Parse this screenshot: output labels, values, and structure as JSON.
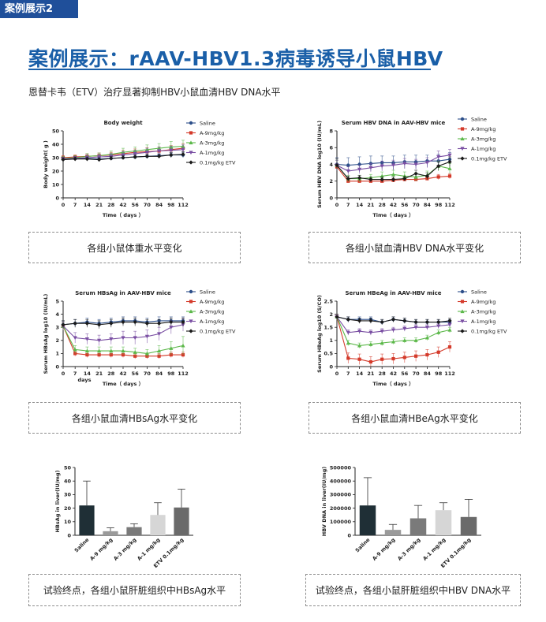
{
  "header": {
    "tag": "案例展示2",
    "title": "案例展示：rAAV-HBV1.3病毒诱导小鼠HBV",
    "subtitle": "恩替卡韦（ETV）治疗显著抑制HBV小鼠血清HBV DNA水平"
  },
  "captions": [
    "各组小鼠体重水平变化",
    "各组小鼠血清HBV DNA水平变化",
    "各组小鼠血清HBsAg水平变化",
    "各组小鼠血清HBeAg水平变化",
    "试验终点，各组小鼠肝脏组织中HBsAg水平",
    "试验终点，各组小鼠肝脏组织中HBV DNA水平"
  ],
  "chart_data": [
    {
      "id": "bw",
      "type": "line",
      "title": "Body weight",
      "xlabel": "Time（ days ）",
      "ylabel": "Body weight( g )",
      "x": [
        0,
        7,
        14,
        21,
        28,
        42,
        56,
        70,
        84,
        98,
        112
      ],
      "xticks": [
        "0",
        "7",
        "14",
        "21",
        "28",
        "42",
        "56",
        "70",
        "84",
        "98",
        "112"
      ],
      "yticks": [
        0,
        10,
        20,
        30,
        40,
        50
      ],
      "ylim": [
        0,
        50
      ],
      "legend": "right",
      "series": [
        {
          "name": "Saline",
          "color": "#2d4f8a",
          "marker": "circle",
          "values": [
            29,
            29.5,
            29.5,
            29,
            29.5,
            30,
            30.5,
            31,
            31.5,
            32,
            32
          ],
          "err": [
            1.5,
            1.5,
            1.5,
            1.5,
            1.5,
            1.5,
            1.5,
            1.5,
            1.5,
            1.5,
            2
          ]
        },
        {
          "name": "A-9mg/kg",
          "color": "#d43a2a",
          "marker": "square",
          "values": [
            30,
            30.5,
            31,
            31.5,
            32,
            33,
            34,
            34.5,
            35,
            36,
            37
          ],
          "err": [
            1.5,
            1.5,
            2,
            2,
            2,
            2.5,
            2.5,
            3,
            3,
            3,
            3.5
          ]
        },
        {
          "name": "A-3mg/kg",
          "color": "#5cb84a",
          "marker": "triangle",
          "values": [
            29.5,
            30,
            31,
            31.5,
            32.5,
            34,
            35,
            36,
            37,
            38,
            38.5
          ],
          "err": [
            1.5,
            1.5,
            2,
            2,
            2.5,
            3,
            3,
            3.5,
            3.5,
            4,
            4.5
          ]
        },
        {
          "name": "A-1mg/kg",
          "color": "#7a4fa3",
          "marker": "tri-down",
          "values": [
            29,
            29.5,
            30,
            30.5,
            31,
            32,
            33,
            34,
            35,
            35.5,
            36
          ],
          "err": [
            1.5,
            1.5,
            2,
            2,
            2,
            2.5,
            2.5,
            3,
            3,
            3,
            3.5
          ]
        },
        {
          "name": "0.1mg/kg ETV",
          "color": "#1a1a1a",
          "marker": "diamond",
          "values": [
            28.5,
            29,
            29,
            28.5,
            29.5,
            30,
            30.5,
            31,
            31,
            32,
            32.5
          ],
          "err": [
            1.5,
            1.5,
            1.5,
            1.5,
            1.5,
            1.5,
            1.5,
            1.5,
            1.5,
            2,
            2
          ]
        }
      ]
    },
    {
      "id": "dna",
      "type": "line",
      "title": "Serum HBV DNA in AAV-HBV mice",
      "xlabel": "Time（ days ）",
      "ylabel": "Serum HBV DNA log10 (IU/mL)",
      "x": [
        0,
        7,
        14,
        21,
        28,
        42,
        56,
        70,
        84,
        98,
        112
      ],
      "xticks": [
        "0",
        "7",
        "14",
        "21",
        "28",
        "42",
        "56",
        "70",
        "84",
        "98",
        "112"
      ],
      "yticks": [
        0,
        2,
        4,
        6,
        8
      ],
      "ylim": [
        0,
        8
      ],
      "legend": "right",
      "series": [
        {
          "name": "Saline",
          "color": "#2d4f8a",
          "marker": "circle",
          "values": [
            4.0,
            3.9,
            4.0,
            4.1,
            4.2,
            4.2,
            4.3,
            4.3,
            4.4,
            4.4,
            4.6
          ],
          "err": [
            0.8,
            0.9,
            0.9,
            0.9,
            0.8,
            0.8,
            0.8,
            0.8,
            0.7,
            0.8,
            0.8
          ]
        },
        {
          "name": "A-9mg/kg",
          "color": "#d43a2a",
          "marker": "square",
          "values": [
            3.7,
            2.0,
            2.0,
            2.0,
            2.0,
            2.1,
            2.2,
            2.2,
            2.3,
            2.5,
            2.6
          ],
          "err": [
            0.3,
            0.1,
            0.1,
            0.1,
            0.1,
            0.2,
            0.2,
            0.2,
            0.2,
            0.3,
            0.3
          ]
        },
        {
          "name": "A-3mg/kg",
          "color": "#5cb84a",
          "marker": "triangle",
          "values": [
            3.9,
            2.3,
            2.3,
            2.4,
            2.6,
            2.8,
            2.6,
            2.5,
            2.7,
            3.8,
            3.5
          ],
          "err": [
            0.6,
            0.4,
            0.4,
            0.4,
            0.5,
            0.5,
            0.5,
            0.5,
            0.5,
            0.6,
            0.6
          ]
        },
        {
          "name": "A-1mg/kg",
          "color": "#7a4fa3",
          "marker": "tri-down",
          "values": [
            3.9,
            3.2,
            3.4,
            3.6,
            3.8,
            3.9,
            4.1,
            4.0,
            4.2,
            4.9,
            5.1
          ],
          "err": [
            0.6,
            0.5,
            0.5,
            0.5,
            0.6,
            0.6,
            0.6,
            0.6,
            0.6,
            0.7,
            0.7
          ]
        },
        {
          "name": "0.1mg/kg ETV",
          "color": "#1a1a1a",
          "marker": "diamond",
          "values": [
            3.9,
            2.3,
            2.4,
            2.2,
            2.2,
            2.2,
            2.3,
            2.9,
            2.6,
            3.8,
            4.3
          ],
          "err": [
            0.8,
            0.3,
            0.3,
            0.3,
            0.3,
            0.3,
            0.3,
            0.4,
            0.4,
            0.5,
            0.6
          ]
        }
      ]
    },
    {
      "id": "hbsag",
      "type": "line",
      "title": "Serum HBsAg in AAV-HBV mice",
      "xlabel": "Time（ days ）",
      "ylabel": "Serum HBsAg log10 (IU/mL)",
      "extra_label": "days",
      "x": [
        0,
        7,
        14,
        21,
        28,
        42,
        56,
        70,
        84,
        98,
        112
      ],
      "xticks": [
        "0",
        "7",
        "14",
        "21",
        "28",
        "42",
        "56",
        "70",
        "84",
        "98",
        "112"
      ],
      "yticks": [
        0,
        1,
        2,
        3,
        4,
        5
      ],
      "ylim": [
        0,
        5
      ],
      "legend": "right",
      "series": [
        {
          "name": "Saline",
          "color": "#2d4f8a",
          "marker": "circle",
          "values": [
            3.2,
            3.3,
            3.4,
            3.3,
            3.4,
            3.5,
            3.5,
            3.4,
            3.5,
            3.5,
            3.5
          ],
          "err": [
            0.3,
            0.3,
            0.3,
            0.3,
            0.3,
            0.3,
            0.3,
            0.3,
            0.3,
            0.3,
            0.3
          ]
        },
        {
          "name": "A-9mg/kg",
          "color": "#d43a2a",
          "marker": "square",
          "values": [
            3.1,
            1.0,
            0.9,
            0.9,
            0.9,
            0.9,
            0.8,
            0.8,
            0.8,
            0.9,
            0.9
          ],
          "err": [
            0.3,
            0.2,
            0.2,
            0.2,
            0.2,
            0.2,
            0.2,
            0.2,
            0.2,
            0.2,
            0.2
          ]
        },
        {
          "name": "A-3mg/kg",
          "color": "#5cb84a",
          "marker": "triangle",
          "values": [
            3.1,
            1.3,
            1.2,
            1.2,
            1.2,
            1.2,
            1.1,
            1.0,
            1.2,
            1.4,
            1.6
          ],
          "err": [
            0.3,
            0.3,
            0.3,
            0.3,
            0.3,
            0.3,
            0.3,
            0.3,
            0.4,
            0.5,
            0.7
          ]
        },
        {
          "name": "A-1mg/kg",
          "color": "#7a4fa3",
          "marker": "tri-down",
          "values": [
            3.1,
            2.2,
            2.1,
            2.0,
            2.1,
            2.2,
            2.2,
            2.3,
            2.5,
            3.0,
            3.2
          ],
          "err": [
            0.3,
            0.4,
            0.4,
            0.4,
            0.4,
            0.5,
            0.5,
            0.5,
            0.5,
            0.5,
            0.5
          ]
        },
        {
          "name": "0.1mg/kg ETV",
          "color": "#1a1a1a",
          "marker": "diamond",
          "values": [
            3.2,
            3.3,
            3.3,
            3.2,
            3.3,
            3.4,
            3.4,
            3.3,
            3.3,
            3.4,
            3.4
          ],
          "err": [
            0.3,
            0.3,
            0.3,
            0.3,
            0.3,
            0.3,
            0.3,
            0.3,
            0.3,
            0.3,
            0.3
          ]
        }
      ]
    },
    {
      "id": "hbeag",
      "type": "line",
      "title": "Serum HBeAg in AAV-HBV mice",
      "xlabel": "Time（ days ）",
      "ylabel": "Serum HBeAg log10 (S/CO)",
      "x": [
        0,
        7,
        14,
        21,
        28,
        42,
        56,
        70,
        84,
        98,
        112
      ],
      "xticks": [
        "0",
        "7",
        "14",
        "21",
        "28",
        "42",
        "56",
        "70",
        "84",
        "98",
        "112"
      ],
      "yticks": [
        0.0,
        0.5,
        1.0,
        1.5,
        2.0,
        2.5
      ],
      "ylim": [
        0,
        2.5
      ],
      "legend": "right",
      "series": [
        {
          "name": "Saline",
          "color": "#2d4f8a",
          "marker": "circle",
          "values": [
            1.9,
            1.8,
            1.8,
            1.8,
            1.7,
            1.8,
            1.75,
            1.7,
            1.7,
            1.7,
            1.7
          ],
          "err": [
            0.1,
            0.1,
            0.1,
            0.1,
            0.1,
            0.1,
            0.1,
            0.1,
            0.1,
            0.1,
            0.1
          ]
        },
        {
          "name": "A-9mg/kg",
          "color": "#d43a2a",
          "marker": "square",
          "values": [
            1.9,
            0.32,
            0.28,
            0.18,
            0.28,
            0.3,
            0.35,
            0.4,
            0.45,
            0.55,
            0.75
          ],
          "err": [
            0.1,
            0.2,
            0.2,
            0.2,
            0.2,
            0.2,
            0.2,
            0.2,
            0.2,
            0.2,
            0.2
          ]
        },
        {
          "name": "A-3mg/kg",
          "color": "#5cb84a",
          "marker": "triangle",
          "values": [
            1.9,
            0.9,
            0.8,
            0.85,
            0.9,
            0.95,
            1.0,
            1.0,
            1.1,
            1.3,
            1.4
          ],
          "err": [
            0.1,
            0.1,
            0.1,
            0.1,
            0.1,
            0.1,
            0.1,
            0.1,
            0.1,
            0.1,
            0.1
          ]
        },
        {
          "name": "A-1mg/kg",
          "color": "#7a4fa3",
          "marker": "tri-down",
          "values": [
            1.9,
            1.3,
            1.35,
            1.3,
            1.35,
            1.4,
            1.45,
            1.5,
            1.5,
            1.55,
            1.6
          ],
          "err": [
            0.1,
            0.1,
            0.1,
            0.1,
            0.1,
            0.1,
            0.1,
            0.1,
            0.1,
            0.1,
            0.1
          ]
        },
        {
          "name": "0.1mg/kg ETV",
          "color": "#1a1a1a",
          "marker": "diamond",
          "values": [
            1.9,
            1.8,
            1.75,
            1.75,
            1.7,
            1.8,
            1.75,
            1.7,
            1.7,
            1.7,
            1.75
          ],
          "err": [
            0.1,
            0.1,
            0.1,
            0.1,
            0.1,
            0.1,
            0.1,
            0.1,
            0.1,
            0.1,
            0.1
          ]
        }
      ]
    },
    {
      "id": "liver_hbsag",
      "type": "bar",
      "ylabel": "HBsAg in liver(IU/mg)",
      "categories": [
        "Saline",
        "A-9 mg/kg",
        "A-3 mg/kg",
        "A-1 mg/kg",
        "ETV 0.1mg/kg"
      ],
      "values": [
        22,
        3,
        6,
        15,
        20.5
      ],
      "err": [
        18,
        2.5,
        2.5,
        9,
        13.5
      ],
      "colors": [
        "#1f2f36",
        "#9a9a9a",
        "#7a7a7a",
        "#d6d6d6",
        "#6a6a6a"
      ],
      "yticks": [
        0,
        10,
        20,
        30,
        40,
        50
      ],
      "ylim": [
        0,
        50
      ]
    },
    {
      "id": "liver_dna",
      "type": "bar",
      "ylabel": "HBV DNA in liver(IU/mg)",
      "categories": [
        "Saline",
        "A-9 mg/kg",
        "A-3 mg/kg",
        "A-1 mg/kg",
        "ETV 0.1mg/kg"
      ],
      "values": [
        220000,
        40000,
        125000,
        185000,
        135000
      ],
      "err": [
        205000,
        40000,
        95000,
        55000,
        130000
      ],
      "colors": [
        "#1f2f36",
        "#9a9a9a",
        "#7a7a7a",
        "#d6d6d6",
        "#6a6a6a"
      ],
      "yticks": [
        0,
        100000,
        200000,
        300000,
        400000,
        500000
      ],
      "ylim": [
        0,
        500000
      ]
    }
  ]
}
